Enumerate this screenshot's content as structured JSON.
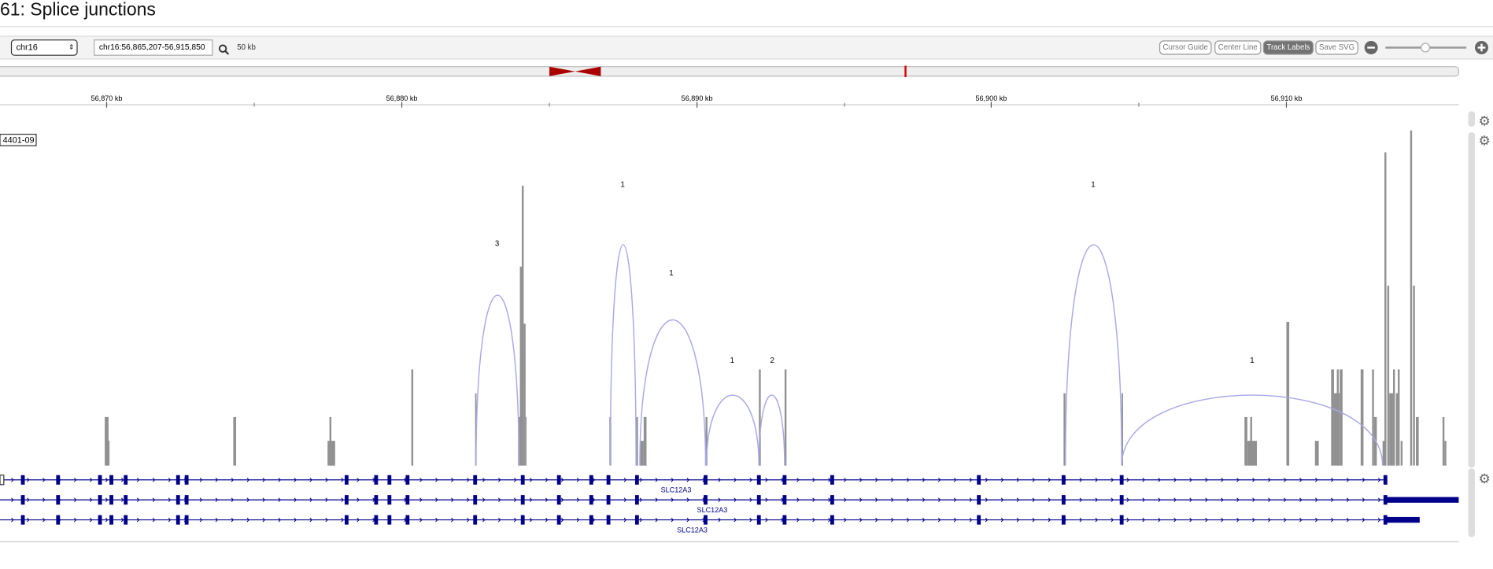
{
  "header": {
    "title": "61: Splice junctions"
  },
  "toolbar": {
    "chromosome": "chr16",
    "locus": "chr16:56,865,207-56,915,850",
    "zoom_label": "50 kb",
    "buttons": [
      "Cursor Guide",
      "Center Line",
      "Track Labels",
      "Save SVG"
    ]
  },
  "ruler": {
    "ticks": [
      "56,870 kb",
      "56,880 kb",
      "56,890 kb",
      "56,900 kb",
      "56,910 kb"
    ]
  },
  "track": {
    "label": "4401-09"
  },
  "junctions": {
    "labels": [
      "3",
      "1",
      "1",
      "1",
      "2",
      "1",
      "1"
    ]
  },
  "genes": {
    "labels": [
      "SLC12A3",
      "SLC12A3",
      "SLC12A3"
    ]
  }
}
